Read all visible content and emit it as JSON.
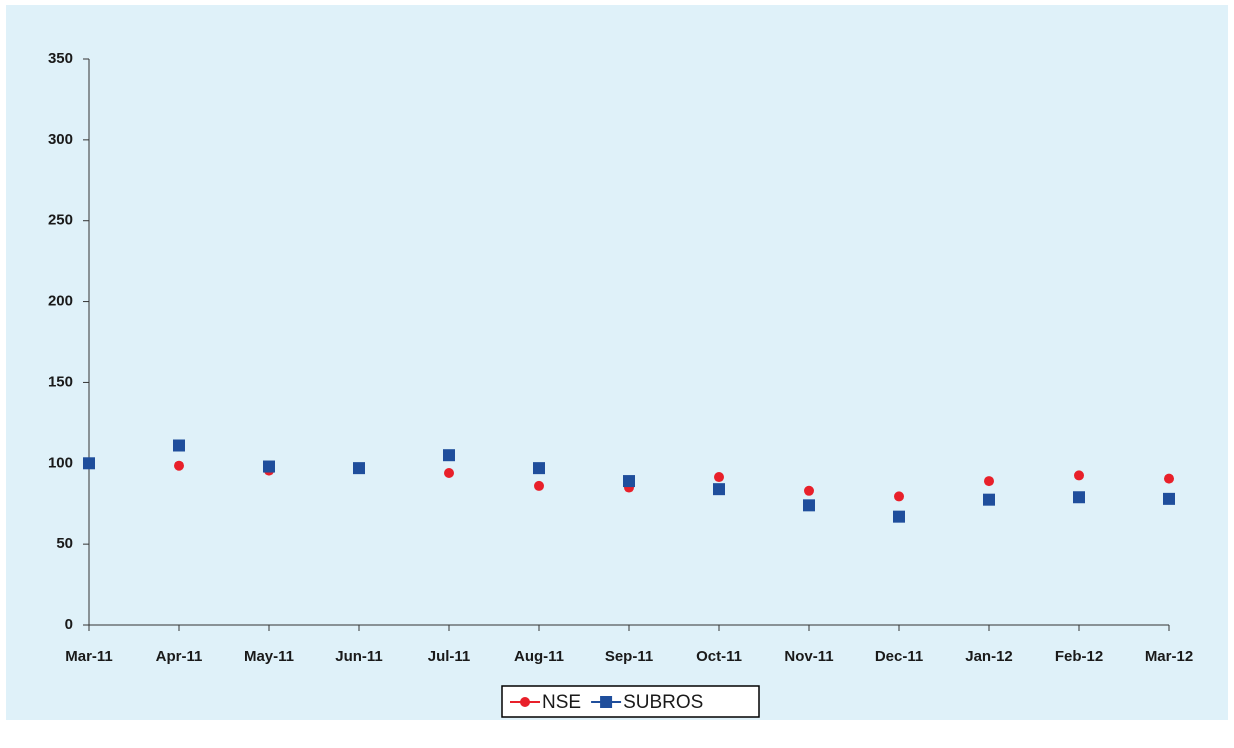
{
  "chart_data": {
    "type": "line",
    "categories": [
      "Mar-11",
      "Apr-11",
      "May-11",
      "Jun-11",
      "Jul-11",
      "Aug-11",
      "Sep-11",
      "Oct-11",
      "Nov-11",
      "Dec-11",
      "Jan-12",
      "Feb-12",
      "Mar-12"
    ],
    "series": [
      {
        "name": "NSE",
        "color": "#e8202a",
        "marker": "circle",
        "values": [
          100,
          98.5,
          95.5,
          97,
          94,
          86,
          85,
          91.5,
          83,
          79.5,
          89,
          92.5,
          90.5
        ]
      },
      {
        "name": "SUBROS",
        "color": "#1f4e9c",
        "marker": "square",
        "values": [
          100,
          111,
          98,
          97,
          105,
          97,
          89,
          84,
          74,
          67,
          77.5,
          79,
          78
        ]
      }
    ],
    "ylim": [
      0,
      350
    ],
    "yticks": [
      0,
      50,
      100,
      150,
      200,
      250,
      300,
      350
    ],
    "legend": "bottom"
  }
}
